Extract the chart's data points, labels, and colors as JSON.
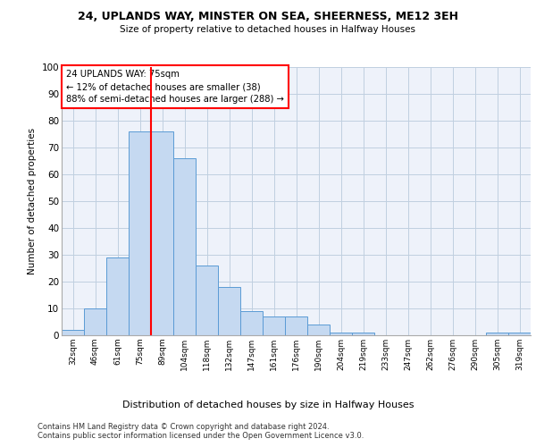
{
  "title_line1": "24, UPLANDS WAY, MINSTER ON SEA, SHEERNESS, ME12 3EH",
  "title_line2": "Size of property relative to detached houses in Halfway Houses",
  "xlabel": "Distribution of detached houses by size in Halfway Houses",
  "ylabel": "Number of detached properties",
  "categories": [
    "32sqm",
    "46sqm",
    "61sqm",
    "75sqm",
    "89sqm",
    "104sqm",
    "118sqm",
    "132sqm",
    "147sqm",
    "161sqm",
    "176sqm",
    "190sqm",
    "204sqm",
    "219sqm",
    "233sqm",
    "247sqm",
    "262sqm",
    "276sqm",
    "290sqm",
    "305sqm",
    "319sqm"
  ],
  "values": [
    2,
    10,
    29,
    76,
    76,
    66,
    26,
    18,
    9,
    7,
    7,
    4,
    1,
    1,
    0,
    0,
    0,
    0,
    0,
    1,
    1
  ],
  "bar_color": "#c5d9f1",
  "bar_edge_color": "#5b9bd5",
  "vline_color": "#ff0000",
  "vline_index": 3.5,
  "annotation_text": "24 UPLANDS WAY: 75sqm\n← 12% of detached houses are smaller (38)\n88% of semi-detached houses are larger (288) →",
  "annotation_box_color": "#ffffff",
  "annotation_box_edge_color": "#ff0000",
  "ylim": [
    0,
    100
  ],
  "yticks": [
    0,
    10,
    20,
    30,
    40,
    50,
    60,
    70,
    80,
    90,
    100
  ],
  "grid_color": "#c0cfe0",
  "background_color": "#eef2fa",
  "footer_line1": "Contains HM Land Registry data © Crown copyright and database right 2024.",
  "footer_line2": "Contains public sector information licensed under the Open Government Licence v3.0."
}
